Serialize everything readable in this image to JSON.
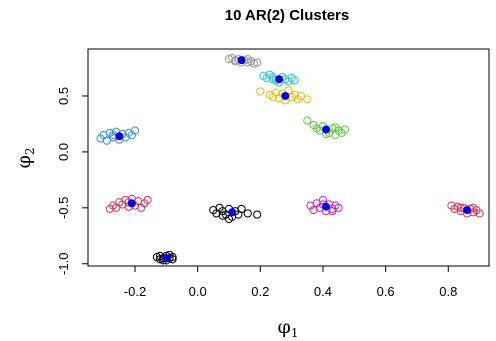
{
  "chart_data": {
    "type": "scatter",
    "title": "10 AR(2) Clusters",
    "xlabel": "φ",
    "xlabel_sub": "1",
    "ylabel": "φ",
    "ylabel_sub": "2",
    "xlim": [
      -0.35,
      0.93
    ],
    "ylim": [
      -1.02,
      0.92
    ],
    "x_ticks": [
      -0.2,
      0.0,
      0.2,
      0.4,
      0.6,
      0.8
    ],
    "x_tick_labels": [
      "-0.2",
      "0.0",
      "0.2",
      "0.4",
      "0.6",
      "0.8"
    ],
    "y_ticks": [
      -1.0,
      -0.5,
      0.0,
      0.5
    ],
    "y_tick_labels": [
      "-1.0",
      "-0.5",
      "0.0",
      "0.5"
    ],
    "grid": false,
    "legend": "none",
    "marker_style": "open-circle",
    "centroid_color": "#0000ee",
    "clusters": [
      {
        "color": "#999999",
        "center": [
          0.14,
          0.82
        ],
        "points": [
          [
            0.1,
            0.83
          ],
          [
            0.11,
            0.84
          ],
          [
            0.12,
            0.81
          ],
          [
            0.13,
            0.83
          ],
          [
            0.15,
            0.82
          ],
          [
            0.16,
            0.8
          ],
          [
            0.17,
            0.81
          ],
          [
            0.18,
            0.79
          ],
          [
            0.14,
            0.8
          ],
          [
            0.12,
            0.82
          ],
          [
            0.19,
            0.8
          ],
          [
            0.16,
            0.83
          ]
        ]
      },
      {
        "color": "#28c6d6",
        "center": [
          0.26,
          0.65
        ],
        "points": [
          [
            0.21,
            0.68
          ],
          [
            0.22,
            0.66
          ],
          [
            0.23,
            0.69
          ],
          [
            0.24,
            0.67
          ],
          [
            0.25,
            0.64
          ],
          [
            0.27,
            0.67
          ],
          [
            0.28,
            0.65
          ],
          [
            0.29,
            0.63
          ],
          [
            0.3,
            0.66
          ],
          [
            0.26,
            0.62
          ],
          [
            0.24,
            0.65
          ],
          [
            0.31,
            0.64
          ]
        ]
      },
      {
        "color": "#f0b800",
        "center": [
          0.28,
          0.5
        ],
        "points": [
          [
            0.2,
            0.54
          ],
          [
            0.23,
            0.51
          ],
          [
            0.25,
            0.53
          ],
          [
            0.26,
            0.48
          ],
          [
            0.27,
            0.52
          ],
          [
            0.28,
            0.46
          ],
          [
            0.29,
            0.55
          ],
          [
            0.3,
            0.49
          ],
          [
            0.31,
            0.51
          ],
          [
            0.32,
            0.47
          ],
          [
            0.33,
            0.5
          ],
          [
            0.35,
            0.47
          ],
          [
            0.24,
            0.49
          ]
        ]
      },
      {
        "color": "#55cc33",
        "center": [
          0.41,
          0.2
        ],
        "points": [
          [
            0.35,
            0.28
          ],
          [
            0.37,
            0.24
          ],
          [
            0.38,
            0.21
          ],
          [
            0.39,
            0.19
          ],
          [
            0.4,
            0.23
          ],
          [
            0.42,
            0.17
          ],
          [
            0.43,
            0.21
          ],
          [
            0.44,
            0.15
          ],
          [
            0.45,
            0.19
          ],
          [
            0.46,
            0.17
          ],
          [
            0.47,
            0.2
          ],
          [
            0.41,
            0.16
          ],
          [
            0.44,
            0.22
          ]
        ]
      },
      {
        "color": "#2f8ee0",
        "center": [
          -0.25,
          0.14
        ],
        "points": [
          [
            -0.31,
            0.12
          ],
          [
            -0.3,
            0.15
          ],
          [
            -0.29,
            0.1
          ],
          [
            -0.28,
            0.17
          ],
          [
            -0.27,
            0.13
          ],
          [
            -0.26,
            0.18
          ],
          [
            -0.25,
            0.11
          ],
          [
            -0.24,
            0.16
          ],
          [
            -0.23,
            0.13
          ],
          [
            -0.22,
            0.17
          ],
          [
            -0.21,
            0.15
          ],
          [
            -0.2,
            0.19
          ],
          [
            -0.27,
            0.15
          ]
        ]
      },
      {
        "color": "#dd3355",
        "center": [
          -0.21,
          -0.46
        ],
        "points": [
          [
            -0.28,
            -0.51
          ],
          [
            -0.27,
            -0.48
          ],
          [
            -0.26,
            -0.5
          ],
          [
            -0.25,
            -0.45
          ],
          [
            -0.24,
            -0.47
          ],
          [
            -0.23,
            -0.43
          ],
          [
            -0.22,
            -0.49
          ],
          [
            -0.21,
            -0.42
          ],
          [
            -0.2,
            -0.48
          ],
          [
            -0.19,
            -0.44
          ],
          [
            -0.18,
            -0.5
          ],
          [
            -0.17,
            -0.46
          ],
          [
            -0.16,
            -0.43
          ],
          [
            -0.22,
            -0.45
          ]
        ]
      },
      {
        "color": "#000000",
        "center": [
          0.11,
          -0.54
        ],
        "points": [
          [
            0.05,
            -0.52
          ],
          [
            0.06,
            -0.55
          ],
          [
            0.07,
            -0.5
          ],
          [
            0.08,
            -0.53
          ],
          [
            0.09,
            -0.56
          ],
          [
            0.1,
            -0.51
          ],
          [
            0.11,
            -0.58
          ],
          [
            0.12,
            -0.53
          ],
          [
            0.13,
            -0.56
          ],
          [
            0.14,
            -0.51
          ],
          [
            0.16,
            -0.55
          ],
          [
            0.1,
            -0.6
          ],
          [
            0.08,
            -0.57
          ],
          [
            0.19,
            -0.56
          ]
        ]
      },
      {
        "color": "#cc22cc",
        "center": [
          0.41,
          -0.49
        ],
        "points": [
          [
            0.36,
            -0.48
          ],
          [
            0.37,
            -0.52
          ],
          [
            0.38,
            -0.46
          ],
          [
            0.39,
            -0.5
          ],
          [
            0.4,
            -0.43
          ],
          [
            0.41,
            -0.53
          ],
          [
            0.42,
            -0.47
          ],
          [
            0.43,
            -0.51
          ],
          [
            0.44,
            -0.48
          ],
          [
            0.45,
            -0.5
          ],
          [
            0.4,
            -0.47
          ],
          [
            0.43,
            -0.53
          ]
        ]
      },
      {
        "color": "#dd3355",
        "center": [
          0.86,
          -0.52
        ],
        "points": [
          [
            0.81,
            -0.48
          ],
          [
            0.82,
            -0.51
          ],
          [
            0.83,
            -0.49
          ],
          [
            0.84,
            -0.53
          ],
          [
            0.85,
            -0.5
          ],
          [
            0.86,
            -0.55
          ],
          [
            0.87,
            -0.51
          ],
          [
            0.88,
            -0.54
          ],
          [
            0.89,
            -0.52
          ],
          [
            0.9,
            -0.55
          ],
          [
            0.88,
            -0.5
          ],
          [
            0.84,
            -0.5
          ]
        ]
      },
      {
        "color": "#000000",
        "center": [
          -0.1,
          -0.95
        ],
        "points": [
          [
            -0.13,
            -0.94
          ],
          [
            -0.12,
            -0.96
          ],
          [
            -0.12,
            -0.93
          ],
          [
            -0.11,
            -0.95
          ],
          [
            -0.1,
            -0.97
          ],
          [
            -0.1,
            -0.93
          ],
          [
            -0.09,
            -0.95
          ],
          [
            -0.08,
            -0.94
          ],
          [
            -0.08,
            -0.96
          ],
          [
            -0.11,
            -0.97
          ],
          [
            -0.09,
            -0.92
          ]
        ]
      }
    ]
  }
}
